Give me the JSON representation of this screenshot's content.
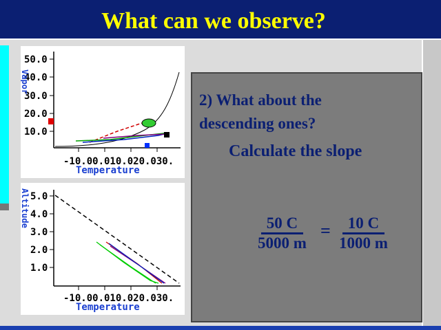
{
  "slide": {
    "title": "What can we observe?"
  },
  "plots": {
    "top": {
      "ylabel": "Vapor",
      "xlabel": "Temperature",
      "yticks": [
        "50.0",
        "40.0",
        "30.0",
        "20.0",
        "10.0"
      ],
      "xticks": "-10.00.010.020.030."
    },
    "bottom": {
      "ylabel": "Altitude",
      "xlabel": "Temperature",
      "yticks": [
        "5.0",
        "4.0",
        "3.0",
        "2.0",
        "1.0"
      ],
      "xticks": "-10.00.010.020.030."
    }
  },
  "panel": {
    "question_line1": "2) What about the",
    "question_line2": "descending ones?",
    "calc_text": "Calculate the slope",
    "frac1_num": "50 C",
    "frac1_den": "5000 m",
    "equals": "=",
    "frac2_num": "10 C",
    "frac2_den": "1000 m"
  },
  "colors": {
    "title_bg": "#0b1f72",
    "title_text": "#ffff00",
    "panel_bg": "#7c7c7c",
    "panel_text": "#0b1f72"
  }
}
